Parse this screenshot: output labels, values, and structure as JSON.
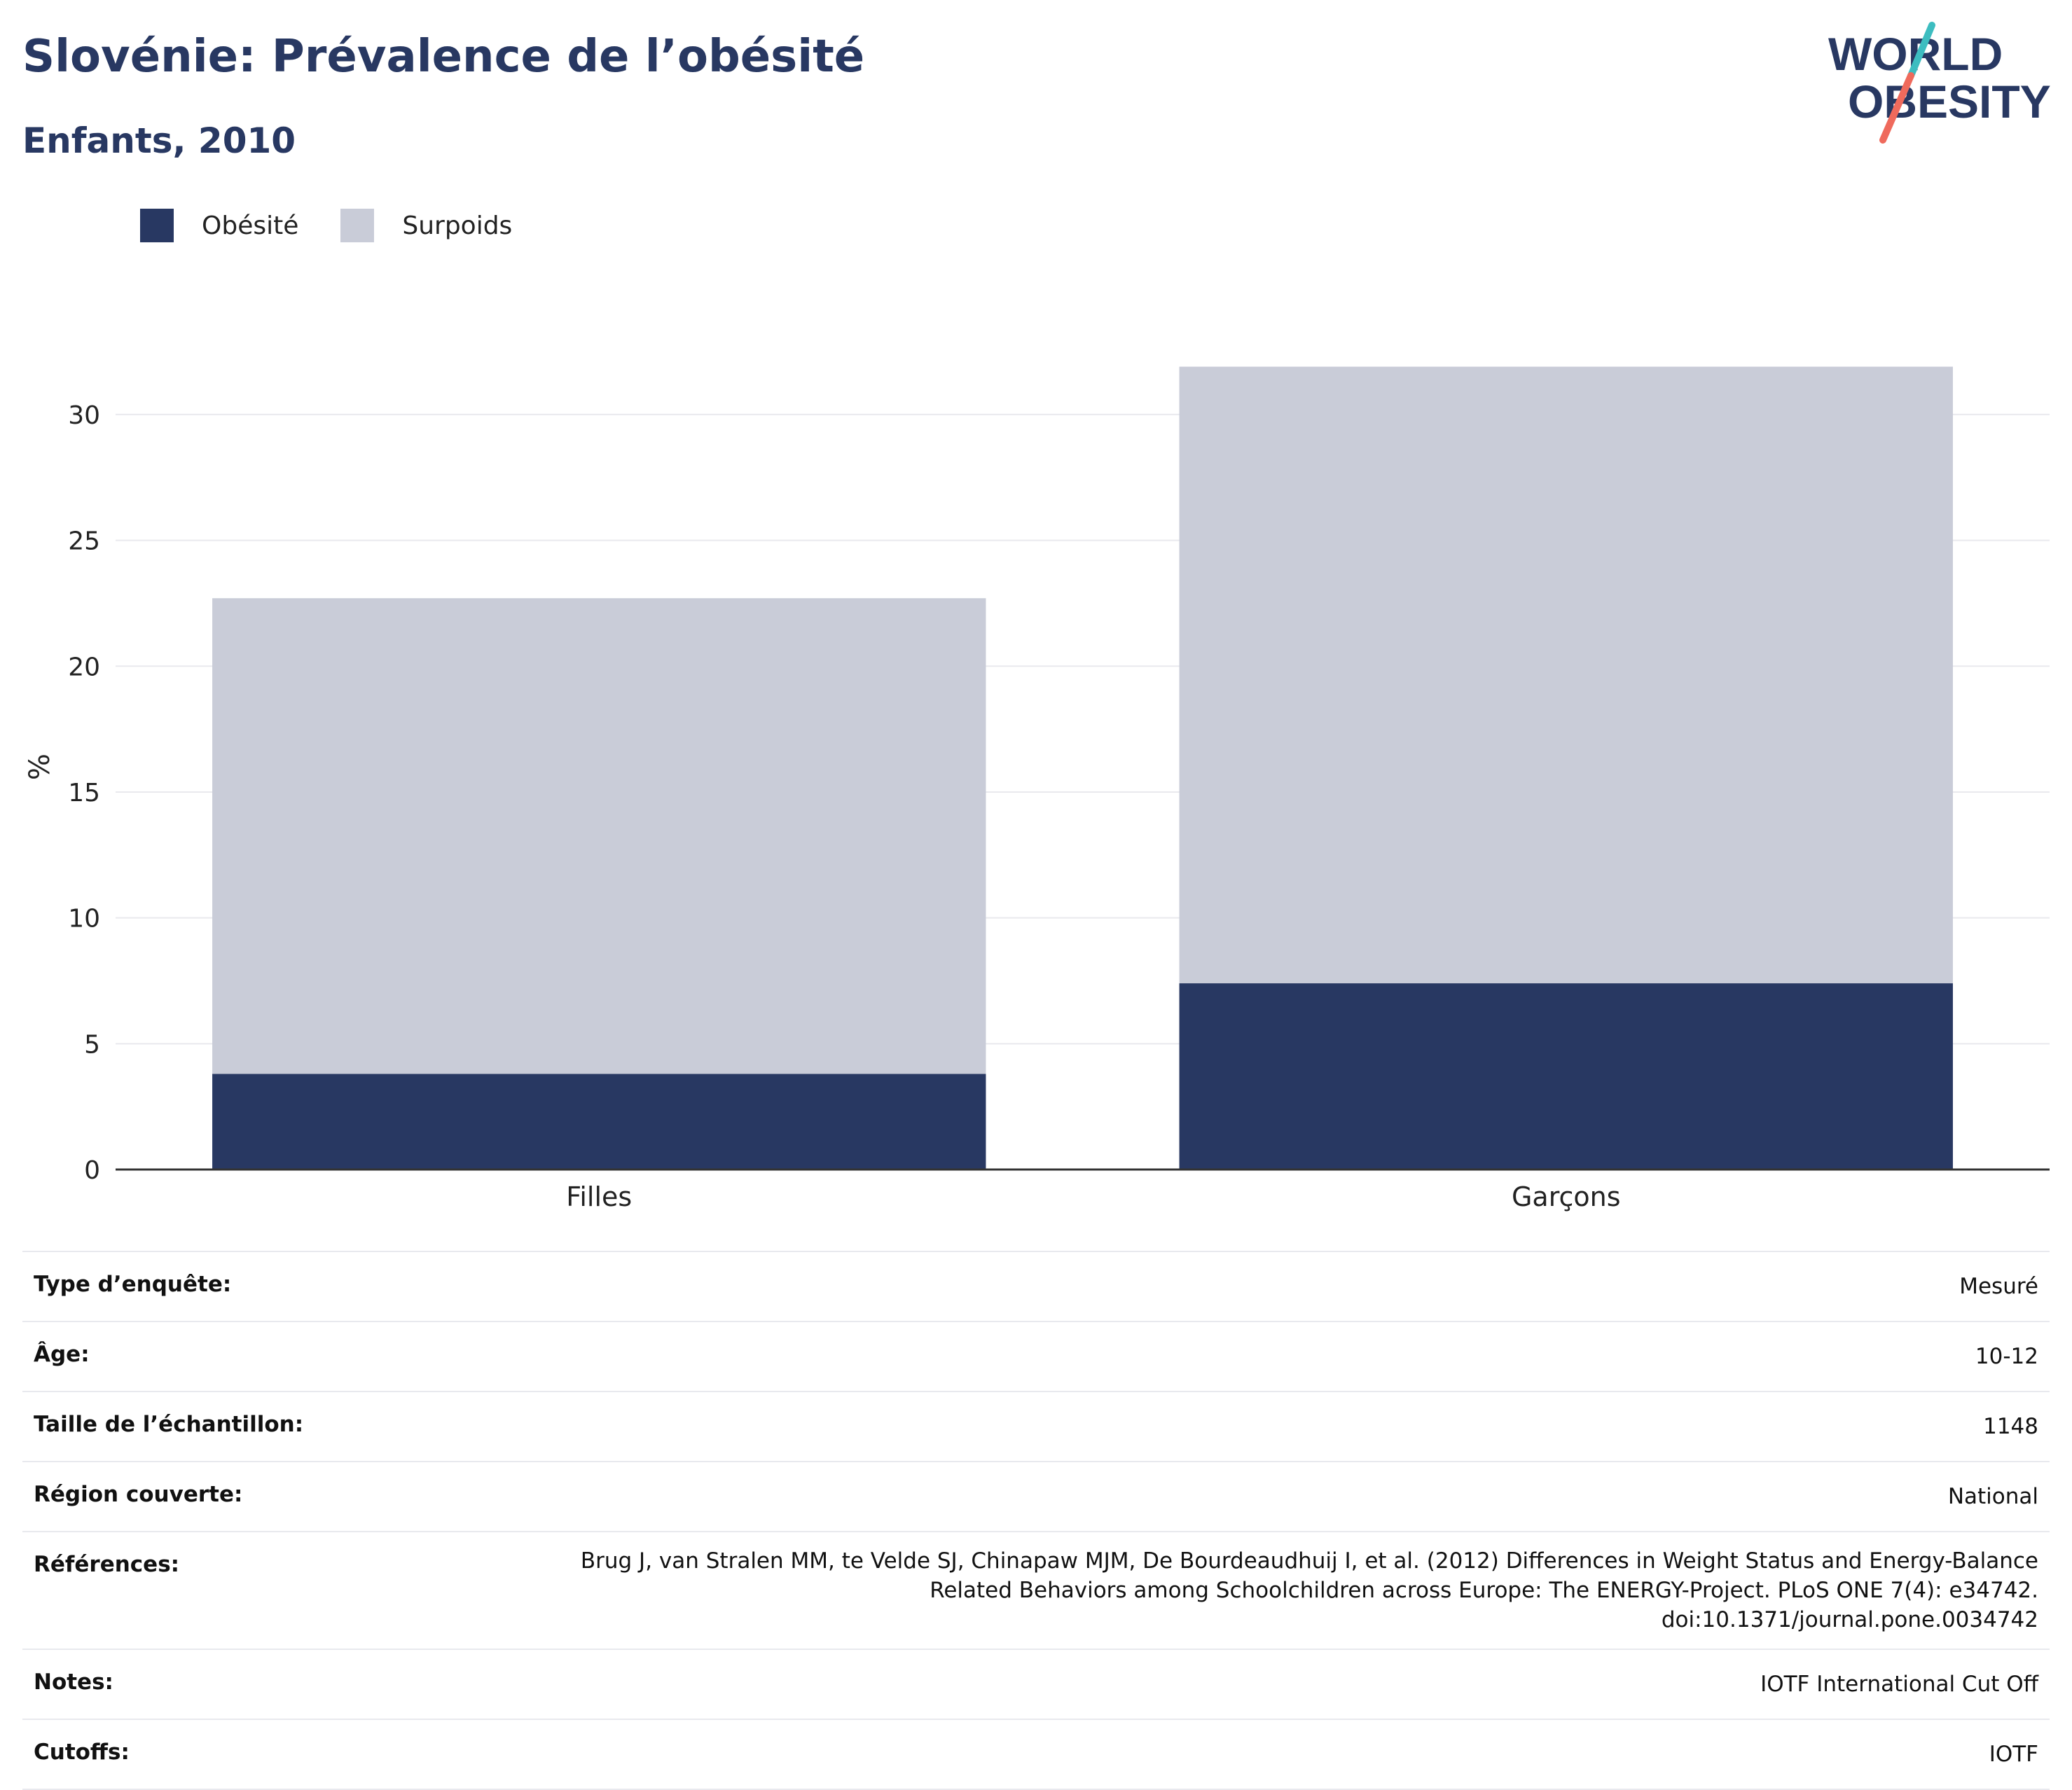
{
  "header": {
    "title": "Slovénie: Prévalence de l’obésité",
    "subtitle": "Enfants, 2010"
  },
  "logo": {
    "line1": "WORLD",
    "line2": "OBESITY"
  },
  "colors": {
    "obesite": "#283862",
    "surpoids": "#c9ccd8",
    "gridline": "#e9e9ee",
    "axis": "#333333",
    "logo_teal": "#3dbdc0",
    "logo_coral": "#ef6a5c"
  },
  "legend": [
    {
      "label": "Obésité",
      "color": "#283862"
    },
    {
      "label": "Surpoids",
      "color": "#c9ccd8"
    }
  ],
  "chart_data": {
    "type": "bar",
    "stacked": true,
    "categories": [
      "Filles",
      "Garçons"
    ],
    "series": [
      {
        "name": "Obésité",
        "values": [
          3.8,
          7.4
        ]
      },
      {
        "name": "Surpoids",
        "values": [
          18.9,
          24.5
        ]
      }
    ],
    "ylabel": "%",
    "ylim": [
      0,
      32
    ],
    "yticks": [
      0,
      5,
      10,
      15,
      20,
      25,
      30
    ],
    "grid": true,
    "legend_position": "top-left"
  },
  "meta": [
    {
      "key": "Type d’enquête:",
      "value": [
        "Mesuré"
      ]
    },
    {
      "key": "Âge:",
      "value": [
        "10-12"
      ]
    },
    {
      "key": "Taille de l’échantillon:",
      "value": [
        "1148"
      ]
    },
    {
      "key": "Région couverte:",
      "value": [
        "National"
      ]
    },
    {
      "key": "Références:",
      "value": [
        "Brug J, van Stralen MM, te Velde SJ, Chinapaw MJM, De Bourdeaudhuij I, et al. (2012) Differences in Weight Status and Energy-Balance",
        "Related Behaviors among Schoolchildren across Europe: The ENERGY-Project. PLoS ONE 7(4): e34742.",
        "doi:10.1371/journal.pone.0034742"
      ]
    },
    {
      "key": "Notes:",
      "value": [
        "IOTF International Cut Off"
      ]
    },
    {
      "key": "Cutoffs:",
      "value": [
        "IOTF"
      ]
    }
  ]
}
